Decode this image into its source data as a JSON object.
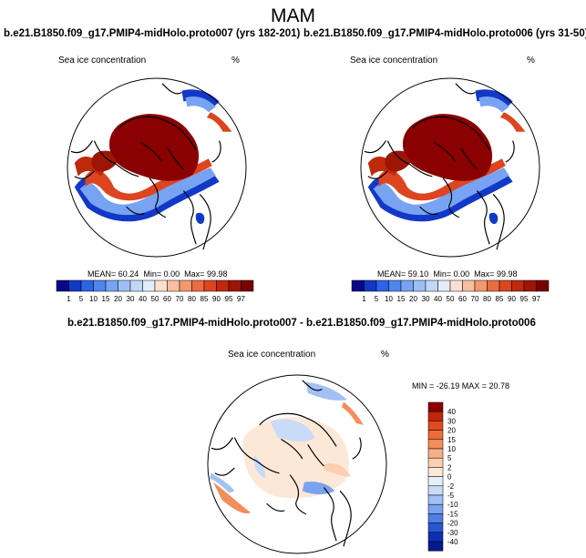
{
  "chart_data": [
    {
      "type": "heatmap",
      "title": "b.e21.B1850.f09_g17.PMIP4-midHolo.proto007 (yrs 182-201)",
      "variable_label": "Sea ice concentration",
      "units": "%",
      "stats": {
        "mean_label": "MEAN=",
        "mean": "60.24",
        "min_label": "Min=",
        "min": "0.00",
        "max_label": "Max=",
        "max": "99.98"
      }
    },
    {
      "type": "heatmap",
      "title": "b.e21.B1850.f09_g17.PMIP4-midHolo.proto006 (yrs 31-50)",
      "variable_label": "Sea ice concentration",
      "units": "%",
      "stats": {
        "mean_label": "MEAN=",
        "mean": "59.10",
        "min_label": "Min=",
        "min": "0.00",
        "max_label": "Max=",
        "max": "99.98"
      }
    },
    {
      "type": "heatmap",
      "title": "b.e21.B1850.f09_g17.PMIP4-midHolo.proto007 - b.e21.B1850.f09_g17.PMIP4-midHolo.proto006",
      "variable_label": "Sea ice concentration",
      "units": "%",
      "stats_text": "MIN = -26.19 MAX =  20.78"
    }
  ],
  "page": {
    "title": "MAM"
  },
  "colorbar_abs": {
    "labels": [
      "1",
      "5",
      "10",
      "15",
      "20",
      "30",
      "40",
      "50",
      "60",
      "70",
      "80",
      "85",
      "90",
      "95",
      "97"
    ],
    "colors": [
      "#08088a",
      "#1238c8",
      "#2f63e6",
      "#5185ee",
      "#77a3f2",
      "#9cbff5",
      "#c0d7f8",
      "#e3ecf9",
      "#fbe0d2",
      "#f7bfa1",
      "#f2996f",
      "#ea6c43",
      "#dc4520",
      "#c02a0c",
      "#9c1606",
      "#780000"
    ]
  },
  "colorbar_diff": {
    "labels": [
      "40",
      "30",
      "20",
      "15",
      "10",
      "5",
      "2",
      "0",
      "-2",
      "-5",
      "-10",
      "-15",
      "-20",
      "-30",
      "-40"
    ],
    "colors": [
      "#8b0000",
      "#c0260c",
      "#e04a1e",
      "#ee6b3a",
      "#f48d5a",
      "#f8ae84",
      "#fbcfb0",
      "#fde8d8",
      "#e6eefa",
      "#c8dcf8",
      "#a2c0f4",
      "#7aa2ee",
      "#4f7ee6",
      "#2856d4",
      "#0c2fb4",
      "#041a8a"
    ]
  }
}
